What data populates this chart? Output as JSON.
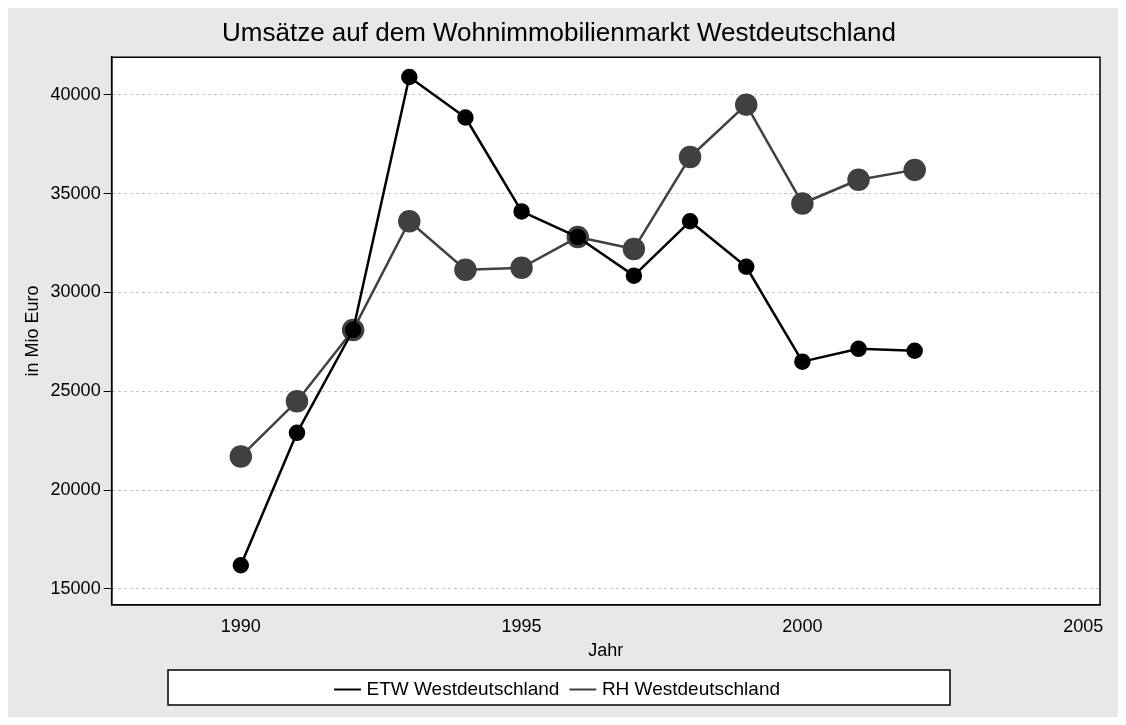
{
  "chart_data": {
    "type": "line",
    "title": "Umsätze auf dem Wohnimmobilienmarkt Westdeutschland",
    "xlabel": "Jahr",
    "ylabel": "in Mio Euro",
    "x": [
      1990,
      1991,
      1992,
      1993,
      1994,
      1995,
      1996,
      1997,
      1998,
      1999,
      2000,
      2001,
      2002
    ],
    "series": [
      {
        "name": "ETW Westdeutschland",
        "color": "#000000",
        "values": [
          16200,
          22900,
          28100,
          40900,
          38850,
          34100,
          32800,
          30850,
          33600,
          31300,
          26500,
          27150,
          27050
        ]
      },
      {
        "name": "RH Westdeutschland",
        "color": "#404040",
        "values": [
          21700,
          24500,
          28100,
          33600,
          31150,
          31250,
          32800,
          32200,
          36850,
          39500,
          34500,
          35700,
          36200
        ]
      }
    ],
    "xlim": [
      1987.7,
      2005.3
    ],
    "xticks": [
      1990,
      1995,
      2000,
      2005
    ],
    "ylim": [
      14200,
      41900
    ],
    "yticks": [
      15000,
      20000,
      25000,
      30000,
      35000,
      40000
    ],
    "grid": "y",
    "legend": "bottom",
    "marker": "circle",
    "line_style": "solid"
  }
}
